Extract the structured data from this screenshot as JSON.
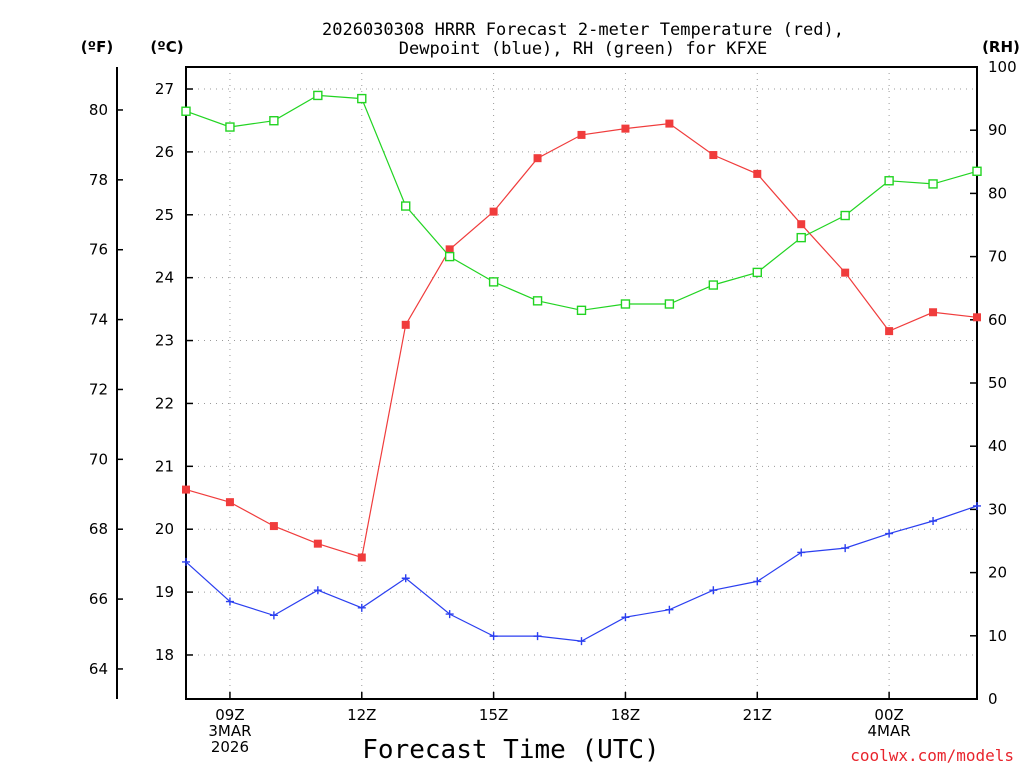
{
  "chart_data": {
    "type": "line",
    "title_line1": "2026030308 HRRR Forecast 2-meter Temperature (red),",
    "title_line2": "Dewpoint (blue), RH (green) for KFXE",
    "xlabel": "Forecast Time (UTC)",
    "credit": "coolwx.com/models",
    "units": {
      "fahrenheit": "(ºF)",
      "celsius": "(ºC)",
      "rh": "(RH)"
    },
    "x_hours": [
      8,
      9,
      10,
      11,
      12,
      13,
      14,
      15,
      16,
      17,
      18,
      19,
      20,
      21,
      22,
      23,
      24,
      25,
      26
    ],
    "x_ticks": [
      {
        "hour": 9,
        "lines": [
          "09Z",
          "3MAR",
          "2026"
        ]
      },
      {
        "hour": 12,
        "lines": [
          "12Z"
        ]
      },
      {
        "hour": 15,
        "lines": [
          "15Z"
        ]
      },
      {
        "hour": 18,
        "lines": [
          "18Z"
        ]
      },
      {
        "hour": 21,
        "lines": [
          "21Z"
        ]
      },
      {
        "hour": 24,
        "lines": [
          "00Z",
          "4MAR"
        ]
      }
    ],
    "xlim": [
      8,
      26
    ],
    "celsius_axis": {
      "range": [
        17.3,
        27.35
      ],
      "ticks": [
        18,
        19,
        20,
        21,
        22,
        23,
        24,
        25,
        26,
        27
      ]
    },
    "fahrenheit_ticks": [
      64,
      66,
      68,
      70,
      72,
      74,
      76,
      78,
      80
    ],
    "rh_axis": {
      "range": [
        0,
        100
      ],
      "ticks": [
        0,
        10,
        20,
        30,
        40,
        50,
        60,
        70,
        80,
        90,
        100
      ]
    },
    "series": [
      {
        "name": "Temperature",
        "color": "#f03c3c",
        "marker": "filled-square",
        "axis": "celsius",
        "values": [
          20.63,
          20.43,
          20.05,
          19.77,
          19.55,
          23.25,
          24.45,
          25.05,
          25.9,
          26.27,
          26.37,
          26.45,
          25.95,
          25.65,
          24.85,
          24.08,
          23.15,
          23.45,
          23.37
        ]
      },
      {
        "name": "Dewpoint",
        "color": "#2b3ff0",
        "marker": "plus",
        "axis": "celsius",
        "values": [
          19.48,
          18.85,
          18.63,
          19.03,
          18.75,
          19.22,
          18.65,
          18.3,
          18.3,
          18.22,
          18.6,
          18.72,
          19.03,
          19.17,
          19.63,
          19.7,
          19.93,
          20.13,
          20.37
        ]
      },
      {
        "name": "RH",
        "color": "#22d422",
        "marker": "open-square",
        "axis": "rh",
        "values": [
          93,
          90.5,
          91.5,
          95.5,
          95,
          78,
          70,
          66,
          63,
          61.5,
          62.5,
          62.5,
          65.5,
          67.5,
          73,
          76.5,
          82,
          81.5,
          83.5
        ]
      }
    ]
  }
}
